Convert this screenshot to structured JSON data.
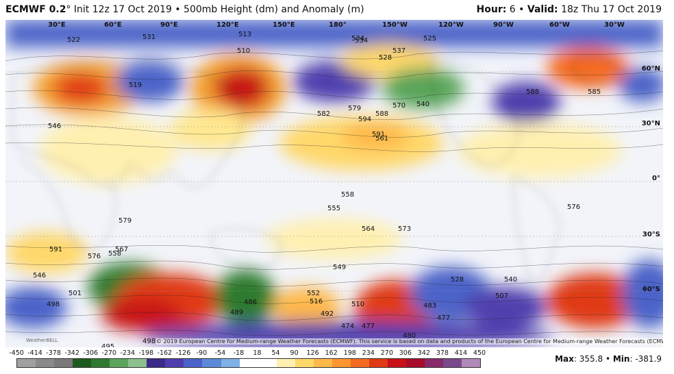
{
  "header": {
    "model": "ECMWF 0.2",
    "model_suffix": "° Init 12z 17 Oct 2019 • 500mb Height (dm) and Anomaly (m)",
    "hour_label": "Hour:",
    "hour_value": "6",
    "valid_label": "Valid:",
    "valid_value": "18z Thu 17 Oct 2019"
  },
  "map": {
    "longitude_labels": [
      "30°E",
      "60°E",
      "90°E",
      "120°E",
      "150°E",
      "180°",
      "150°W",
      "120°W",
      "90°W",
      "60°W",
      "30°W"
    ],
    "latitude_labels": [
      "60°N",
      "30°N",
      "0°",
      "30°S",
      "60°S"
    ],
    "contour_labels": [
      "522",
      "531",
      "546",
      "534",
      "513",
      "510",
      "534",
      "537",
      "525",
      "528",
      "519",
      "582",
      "579",
      "588",
      "591",
      "594",
      "570",
      "576",
      "558",
      "555",
      "564",
      "567",
      "561",
      "540",
      "588",
      "585",
      "576",
      "579",
      "591",
      "546",
      "501",
      "498",
      "558",
      "549",
      "552",
      "489",
      "486",
      "516",
      "492",
      "474",
      "477",
      "480",
      "495",
      "498",
      "507",
      "528",
      "477",
      "483",
      "510",
      "540",
      "573"
    ],
    "copyright": "© 2019 European Centre for Medium-range Weather Forecasts (ECMWF). This service is based on data and products of the European Centre for Medium-range Weather Forecasts (ECMWF).",
    "watermark": "WeatherBELL"
  },
  "colorbar": {
    "ticks": [
      "-450",
      "-414",
      "-378",
      "-342",
      "-306",
      "-270",
      "-234",
      "-198",
      "-162",
      "-126",
      "-90",
      "-54",
      "-18",
      "18",
      "54",
      "90",
      "126",
      "162",
      "198",
      "234",
      "270",
      "306",
      "342",
      "378",
      "414",
      "450"
    ],
    "colors": [
      "#a0a0a0",
      "#8a8a8a",
      "#7a7a7a",
      "#1f5a1f",
      "#2f7a2f",
      "#5aa55a",
      "#8cc08c",
      "#3b2a8a",
      "#4f3fae",
      "#4b63c8",
      "#5b8ad6",
      "#7fb0e6",
      "#ffffff",
      "#ffffff",
      "#fff0b0",
      "#ffd86a",
      "#ffb84a",
      "#ff9530",
      "#f46a20",
      "#e03a14",
      "#c81218",
      "#a80d2a",
      "#8a2a6a",
      "#7a4a8a",
      "#b08ab8"
    ],
    "max_label": "Max",
    "max_value": "355.8",
    "min_label": "Min",
    "min_value": "-381.9"
  }
}
